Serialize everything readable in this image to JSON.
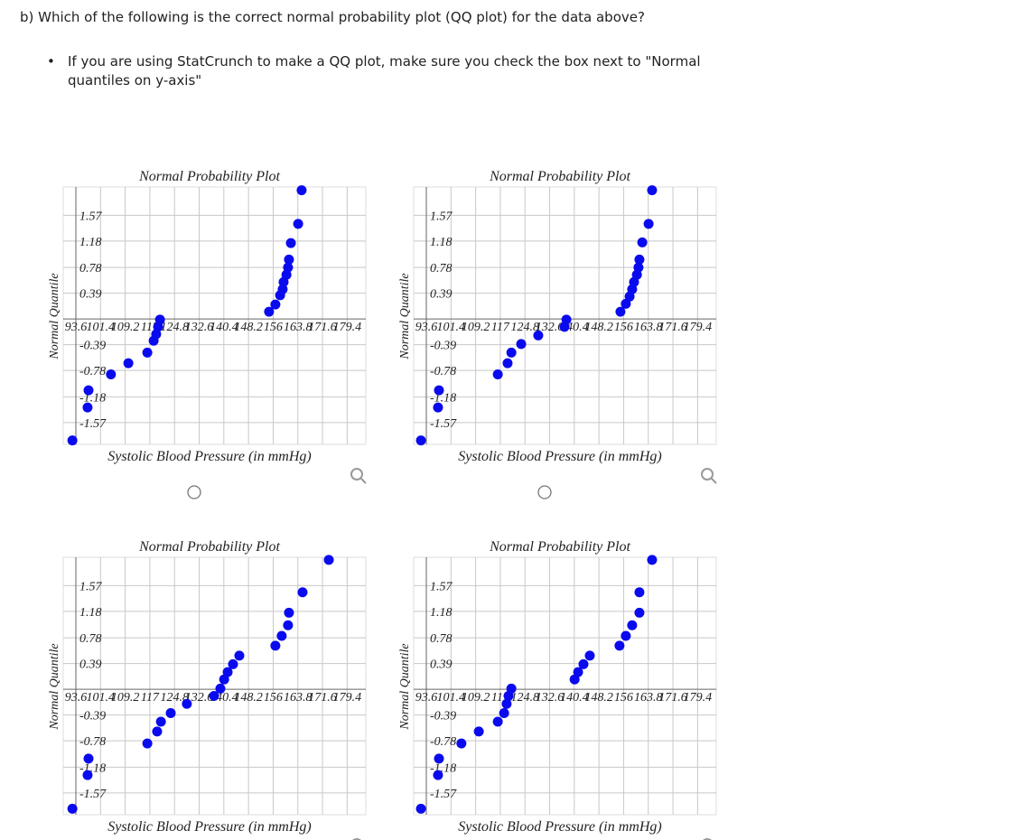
{
  "question": "b) Which of the following is the correct normal probability plot (QQ plot) for the data above?",
  "bullet": "If you are using StatCrunch to make a QQ plot, make sure you check the box next to \"Normal quantiles on y-axis\"",
  "chart_data": [
    {
      "type": "scatter",
      "title": "Normal Probability Plot",
      "x_label": "Systolic Blood Pressure (in mmHg)",
      "y_label": "Normal Quantile",
      "color": "#0a0aee",
      "grid": true,
      "x": [
        92.5,
        97.3,
        97.6,
        104.7,
        110.2,
        116.2,
        118.2,
        119.0,
        119.6,
        120.2,
        154.7,
        156.7,
        158.2,
        159.0,
        159.3,
        160.2,
        160.7,
        161.0,
        161.6,
        163.9,
        165.0
      ],
      "values": [
        -1.84,
        -1.34,
        -1.08,
        -0.84,
        -0.67,
        -0.51,
        -0.33,
        -0.23,
        -0.12,
        -0.01,
        0.11,
        0.22,
        0.36,
        0.45,
        0.56,
        0.67,
        0.78,
        0.9,
        1.15,
        1.44,
        1.95
      ],
      "xlim": [
        89.6,
        185.3
      ],
      "ylim": [
        -1.9,
        2.0
      ],
      "xticks": [
        93.6,
        101.4,
        109.2,
        117,
        124.8,
        132.6,
        140.4,
        148.2,
        156,
        163.8,
        171.6,
        179.4
      ],
      "yticks": [
        -1.57,
        -1.18,
        -0.78,
        -0.39,
        0.39,
        0.78,
        1.18,
        1.57
      ]
    },
    {
      "type": "scatter",
      "title": "Normal Probability Plot",
      "x_label": "Systolic Blood Pressure (in mmHg)",
      "y_label": "Normal Quantile",
      "color": "#0a0aee",
      "grid": true,
      "x": [
        91.9,
        97.3,
        97.6,
        116.2,
        119.3,
        120.5,
        123.6,
        129.0,
        137.3,
        137.9,
        155.0,
        156.7,
        157.9,
        158.7,
        159.3,
        160.2,
        160.7,
        161.0,
        161.9,
        163.9,
        165.0
      ],
      "values": [
        -1.84,
        -1.34,
        -1.08,
        -0.84,
        -0.67,
        -0.51,
        -0.38,
        -0.25,
        -0.12,
        -0.01,
        0.11,
        0.23,
        0.34,
        0.45,
        0.56,
        0.67,
        0.78,
        0.9,
        1.16,
        1.44,
        1.95
      ],
      "xlim": [
        89.6,
        185.3
      ],
      "ylim": [
        -1.9,
        2.0
      ],
      "xticks": [
        93.6,
        101.4,
        109.2,
        117,
        124.8,
        132.6,
        140.4,
        148.2,
        156,
        163.8,
        171.6,
        179.4
      ],
      "yticks": [
        -1.57,
        -1.18,
        -0.78,
        -0.39,
        0.39,
        0.78,
        1.18,
        1.57
      ]
    },
    {
      "type": "scatter",
      "title": "Normal Probability Plot",
      "x_label": "Systolic Blood Pressure (in mmHg)",
      "y_label": "Normal Quantile",
      "color": "#0a0aee",
      "grid": true,
      "x": [
        92.5,
        97.3,
        97.6,
        116.2,
        119.3,
        120.5,
        123.6,
        128.7,
        137.3,
        139.3,
        140.5,
        141.6,
        143.3,
        145.3,
        156.7,
        158.7,
        160.7,
        161.0,
        165.3,
        173.6
      ],
      "values": [
        -1.81,
        -1.3,
        -1.05,
        -0.82,
        -0.64,
        -0.49,
        -0.36,
        -0.22,
        -0.1,
        0.01,
        0.15,
        0.26,
        0.38,
        0.51,
        0.66,
        0.81,
        0.97,
        1.16,
        1.47,
        1.96
      ],
      "xlim": [
        89.6,
        185.3
      ],
      "ylim": [
        -1.9,
        2.0
      ],
      "xticks": [
        93.6,
        101.4,
        109.2,
        117,
        124.8,
        132.6,
        140.4,
        148.2,
        156,
        163.8,
        171.6,
        179.4
      ],
      "yticks": [
        -1.57,
        -1.18,
        -0.78,
        -0.39,
        0.39,
        0.78,
        1.18,
        1.57
      ]
    },
    {
      "type": "scatter",
      "title": "Normal Probability Plot",
      "x_label": "Systolic Blood Pressure (in mmHg)",
      "y_label": "Normal Quantile",
      "color": "#0a0aee",
      "grid": true,
      "x": [
        91.9,
        97.3,
        97.6,
        104.7,
        110.2,
        116.2,
        118.2,
        119.0,
        119.6,
        120.5,
        140.5,
        141.6,
        143.3,
        145.3,
        154.7,
        156.7,
        158.7,
        161.0,
        161.0,
        165.0
      ],
      "values": [
        -1.81,
        -1.3,
        -1.05,
        -0.82,
        -0.64,
        -0.49,
        -0.36,
        -0.22,
        -0.1,
        0.01,
        0.15,
        0.26,
        0.38,
        0.51,
        0.66,
        0.81,
        0.97,
        1.16,
        1.47,
        1.96
      ],
      "xlim": [
        89.6,
        185.3
      ],
      "ylim": [
        -1.9,
        2.0
      ],
      "xticks": [
        93.6,
        101.4,
        109.2,
        117,
        124.8,
        132.6,
        140.4,
        148.2,
        156,
        163.8,
        171.6,
        179.4
      ],
      "yticks": [
        -1.57,
        -1.18,
        -0.78,
        -0.39,
        0.39,
        0.78,
        1.18,
        1.57
      ]
    }
  ]
}
